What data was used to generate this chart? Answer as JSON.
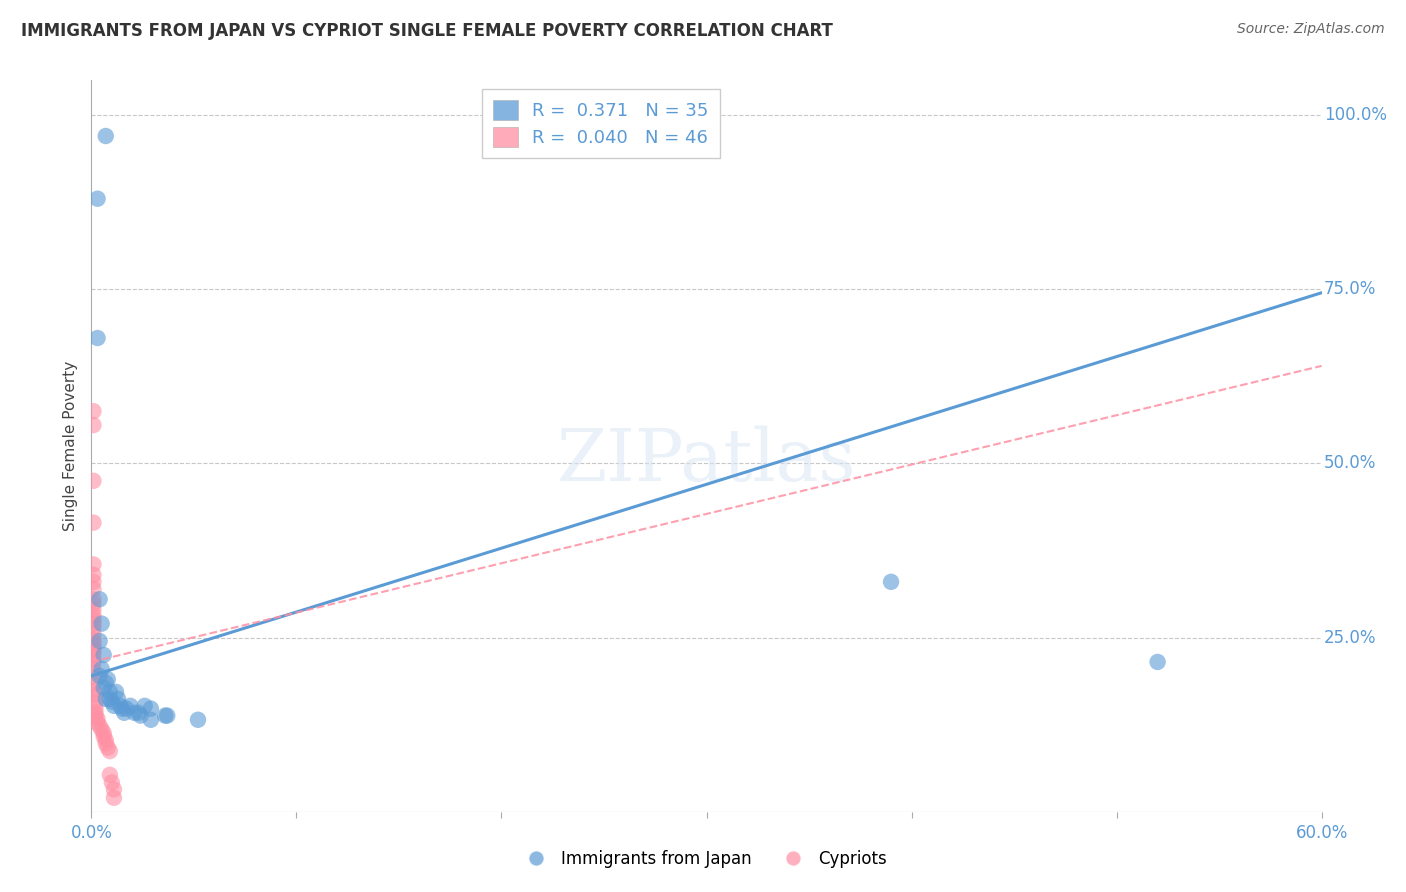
{
  "title": "IMMIGRANTS FROM JAPAN VS CYPRIOT SINGLE FEMALE POVERTY CORRELATION CHART",
  "source": "Source: ZipAtlas.com",
  "xlabel_blue": "Immigrants from Japan",
  "xlabel_pink": "Cypriots",
  "ylabel": "Single Female Poverty",
  "xlim": [
    0.0,
    0.6
  ],
  "ylim": [
    0.0,
    1.05
  ],
  "xticks": [
    0.0,
    0.1,
    0.2,
    0.3,
    0.4,
    0.5,
    0.6
  ],
  "xtick_labels": [
    "0.0%",
    "",
    "",
    "",
    "",
    "",
    "60.0%"
  ],
  "ytick_labels_right": [
    "100.0%",
    "75.0%",
    "50.0%",
    "25.0%"
  ],
  "ytick_positions_right": [
    1.0,
    0.75,
    0.5,
    0.25
  ],
  "legend_blue_R": "0.371",
  "legend_blue_N": "35",
  "legend_pink_R": "0.040",
  "legend_pink_N": "46",
  "blue_color": "#5b9bd5",
  "pink_color": "#ff8fa3",
  "blue_scatter": [
    [
      0.003,
      0.88
    ],
    [
      0.007,
      0.97
    ],
    [
      0.003,
      0.68
    ],
    [
      0.004,
      0.305
    ],
    [
      0.005,
      0.27
    ],
    [
      0.004,
      0.245
    ],
    [
      0.006,
      0.225
    ],
    [
      0.005,
      0.205
    ],
    [
      0.004,
      0.195
    ],
    [
      0.007,
      0.185
    ],
    [
      0.008,
      0.19
    ],
    [
      0.006,
      0.178
    ],
    [
      0.009,
      0.172
    ],
    [
      0.007,
      0.162
    ],
    [
      0.009,
      0.162
    ],
    [
      0.01,
      0.158
    ],
    [
      0.012,
      0.172
    ],
    [
      0.011,
      0.152
    ],
    [
      0.013,
      0.162
    ],
    [
      0.014,
      0.152
    ],
    [
      0.015,
      0.148
    ],
    [
      0.017,
      0.148
    ],
    [
      0.019,
      0.152
    ],
    [
      0.016,
      0.142
    ],
    [
      0.021,
      0.142
    ],
    [
      0.023,
      0.142
    ],
    [
      0.026,
      0.152
    ],
    [
      0.024,
      0.138
    ],
    [
      0.029,
      0.148
    ],
    [
      0.036,
      0.138
    ],
    [
      0.029,
      0.132
    ],
    [
      0.037,
      0.138
    ],
    [
      0.052,
      0.132
    ],
    [
      0.39,
      0.33
    ],
    [
      0.52,
      0.215
    ]
  ],
  "pink_scatter": [
    [
      0.001,
      0.575
    ],
    [
      0.001,
      0.555
    ],
    [
      0.001,
      0.475
    ],
    [
      0.001,
      0.415
    ],
    [
      0.001,
      0.355
    ],
    [
      0.001,
      0.34
    ],
    [
      0.001,
      0.33
    ],
    [
      0.001,
      0.32
    ],
    [
      0.001,
      0.305
    ],
    [
      0.001,
      0.298
    ],
    [
      0.001,
      0.29
    ],
    [
      0.001,
      0.282
    ],
    [
      0.001,
      0.276
    ],
    [
      0.001,
      0.27
    ],
    [
      0.001,
      0.264
    ],
    [
      0.001,
      0.255
    ],
    [
      0.001,
      0.247
    ],
    [
      0.001,
      0.242
    ],
    [
      0.001,
      0.237
    ],
    [
      0.001,
      0.232
    ],
    [
      0.001,
      0.226
    ],
    [
      0.001,
      0.218
    ],
    [
      0.001,
      0.213
    ],
    [
      0.001,
      0.203
    ],
    [
      0.001,
      0.193
    ],
    [
      0.001,
      0.183
    ],
    [
      0.001,
      0.173
    ],
    [
      0.002,
      0.168
    ],
    [
      0.002,
      0.158
    ],
    [
      0.002,
      0.15
    ],
    [
      0.002,
      0.143
    ],
    [
      0.002,
      0.138
    ],
    [
      0.003,
      0.133
    ],
    [
      0.003,
      0.128
    ],
    [
      0.004,
      0.123
    ],
    [
      0.005,
      0.118
    ],
    [
      0.006,
      0.113
    ],
    [
      0.006,
      0.108
    ],
    [
      0.007,
      0.103
    ],
    [
      0.007,
      0.098
    ],
    [
      0.008,
      0.092
    ],
    [
      0.009,
      0.087
    ],
    [
      0.009,
      0.053
    ],
    [
      0.01,
      0.042
    ],
    [
      0.011,
      0.032
    ],
    [
      0.011,
      0.02
    ]
  ],
  "blue_line_x": [
    0.0,
    0.6
  ],
  "blue_line_y": [
    0.195,
    0.745
  ],
  "pink_line_x": [
    0.0,
    0.6
  ],
  "pink_line_y": [
    0.215,
    0.64
  ],
  "watermark": "ZIPatlas",
  "background_color": "#ffffff",
  "grid_color": "#c8c8c8"
}
